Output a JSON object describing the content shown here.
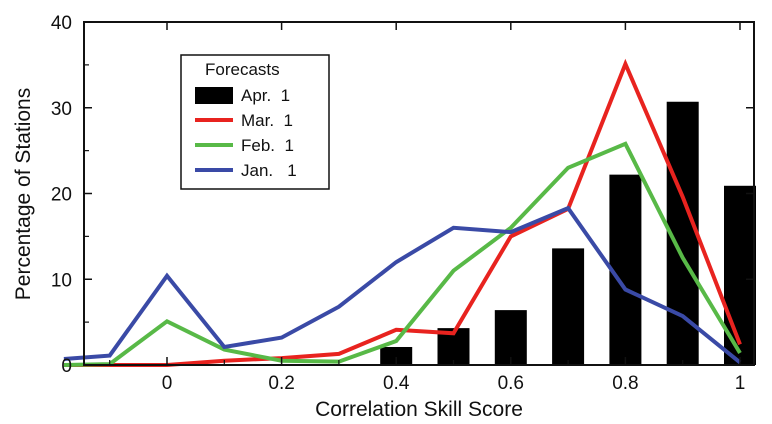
{
  "chart_data": {
    "type": "bar+line",
    "title": "",
    "xlabel": "Correlation Skill Score",
    "ylabel": "Percentage of Stations",
    "xlim": [
      -0.18,
      1.05
    ],
    "ylim": [
      0,
      40
    ],
    "x_ticks": [
      "0",
      "0.2",
      "0.4",
      "0.6",
      "0.8",
      "1"
    ],
    "x_tick_values": [
      0,
      0.2,
      0.4,
      0.6,
      0.8,
      1
    ],
    "y_ticks": [
      "0",
      "10",
      "20",
      "30",
      "40"
    ],
    "y_tick_values": [
      0,
      10,
      20,
      30,
      40
    ],
    "grid": false,
    "legend": {
      "title": "Forecasts",
      "placement": "upper-left",
      "entries": [
        {
          "label": "Apr.  1",
          "kind": "bar",
          "color": "#000000"
        },
        {
          "label": "Mar.  1",
          "kind": "line",
          "color": "#e8231f"
        },
        {
          "label": "Feb.  1",
          "kind": "line",
          "color": "#58b947"
        },
        {
          "label": "Jan.   1",
          "kind": "line",
          "color": "#3a4aa6"
        }
      ]
    },
    "bars": {
      "name": "Apr.  1",
      "color": "#000000",
      "x": [
        0.4,
        0.5,
        0.6,
        0.7,
        0.8,
        0.9,
        1.0
      ],
      "values": [
        2.1,
        4.3,
        6.4,
        13.6,
        22.2,
        30.7,
        20.9
      ]
    },
    "series": [
      {
        "name": "Mar.  1",
        "color": "#e8231f",
        "x": [
          -0.18,
          -0.1,
          0.0,
          0.1,
          0.2,
          0.3,
          0.4,
          0.5,
          0.6,
          0.7,
          0.8,
          0.9,
          1.0
        ],
        "values": [
          0.0,
          0.0,
          0.0,
          0.5,
          0.8,
          1.3,
          4.1,
          3.7,
          15.0,
          18.2,
          35.1,
          19.6,
          2.4
        ]
      },
      {
        "name": "Feb.  1",
        "color": "#58b947",
        "x": [
          -0.18,
          -0.1,
          0.0,
          0.1,
          0.2,
          0.3,
          0.4,
          0.5,
          0.6,
          0.7,
          0.8,
          0.9,
          1.0
        ],
        "values": [
          0.0,
          0.1,
          5.1,
          1.8,
          0.5,
          0.4,
          2.8,
          11.0,
          16.0,
          23.0,
          25.8,
          12.5,
          1.4
        ]
      },
      {
        "name": "Jan.   1",
        "color": "#3a4aa6",
        "x": [
          -0.18,
          -0.1,
          0.0,
          0.1,
          0.2,
          0.3,
          0.4,
          0.5,
          0.6,
          0.7,
          0.8,
          0.9,
          1.0
        ],
        "values": [
          0.7,
          1.1,
          10.4,
          2.1,
          3.2,
          6.8,
          12.0,
          16.0,
          15.5,
          18.3,
          8.8,
          5.7,
          0.3
        ]
      }
    ]
  }
}
